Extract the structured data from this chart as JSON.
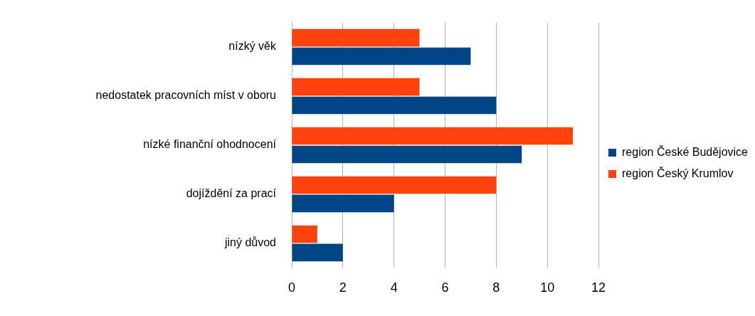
{
  "chart_data": {
    "type": "bar",
    "orientation": "horizontal",
    "categories": [
      "nízký věk",
      "nedostatek pracovních míst v oboru",
      "nízké finanční ohodnocení",
      "dojíždění za prací",
      "jiný důvod"
    ],
    "series": [
      {
        "name": "region České Budějovice",
        "color": "#004586",
        "values": [
          7,
          8,
          9,
          4,
          2
        ]
      },
      {
        "name": "region Český Krumlov",
        "color": "#ff420e",
        "values": [
          5,
          5,
          11,
          8,
          1
        ]
      }
    ],
    "xlim": [
      0,
      12
    ],
    "xticks": [
      0,
      2,
      4,
      6,
      8,
      10,
      12
    ],
    "grid": "x",
    "legend": "right"
  }
}
